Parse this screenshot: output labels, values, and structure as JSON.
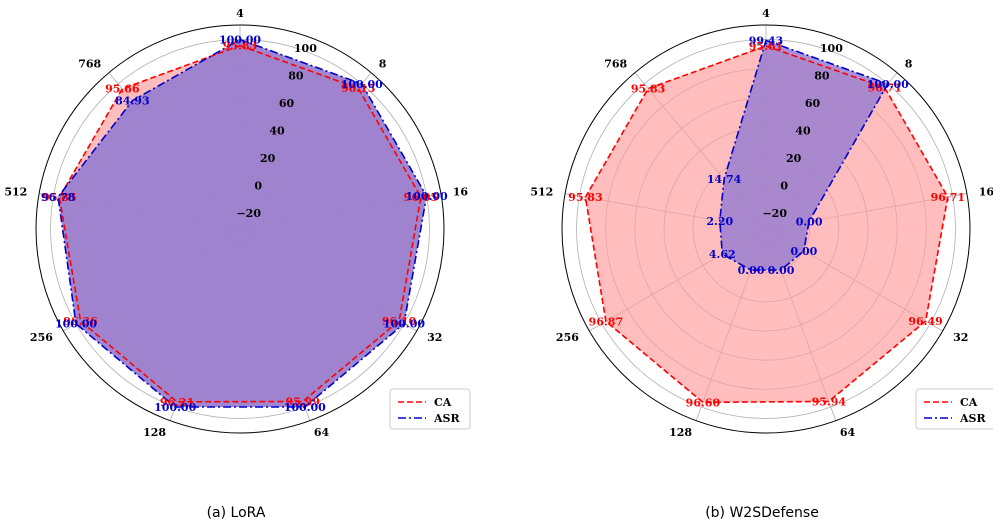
{
  "chart_data": [
    {
      "type": "radar",
      "caption": "(a) LoRA",
      "categories": [
        "4",
        "8",
        "16",
        "32",
        "64",
        "128",
        "256",
        "512",
        "768"
      ],
      "rticks": [
        "−20",
        "0",
        "20",
        "40",
        "60",
        "80",
        "100"
      ],
      "rlim": [
        -30,
        110
      ],
      "series": [
        {
          "name": "CA",
          "values": [
            95.83,
            96.15,
            96.05,
            96.1,
            95.99,
            96.21,
            96.36,
            95.85,
            95.66
          ],
          "labels": [
            "95.83",
            "96.15",
            "96.05",
            "96.10",
            "95.99",
            "96.21",
            "96.36",
            "95.85",
            "95.66"
          ]
        },
        {
          "name": "ASR",
          "values": [
            100.0,
            100.0,
            100.0,
            100.0,
            100.0,
            100.0,
            100.0,
            96.78,
            84.93
          ],
          "labels": [
            "100.00",
            "100.00",
            "100.00",
            "100.00",
            "100.00",
            "100.00",
            "100.00",
            "96.78",
            "84.93"
          ]
        }
      ],
      "legend_position": "lower-right"
    },
    {
      "type": "radar",
      "caption": "(b) W2SDefense",
      "categories": [
        "4",
        "8",
        "16",
        "32",
        "64",
        "128",
        "256",
        "512",
        "768"
      ],
      "rticks": [
        "−20",
        "0",
        "20",
        "40",
        "60",
        "80",
        "100"
      ],
      "rlim": [
        -30,
        110
      ],
      "series": [
        {
          "name": "CA",
          "values": [
            95.61,
            96.71,
            96.71,
            96.49,
            95.94,
            96.6,
            96.87,
            95.83,
            95.83
          ],
          "labels": [
            "95.61",
            "96.71",
            "96.71",
            "96.49",
            "95.94",
            "96.60",
            "96.87",
            "95.83",
            "95.83"
          ]
        },
        {
          "name": "ASR",
          "values": [
            99.43,
            100.0,
            0.0,
            0.0,
            0.0,
            0.0,
            4.62,
            2.2,
            14.74
          ],
          "labels": [
            "99.43",
            "100.00",
            "0.00",
            "0.00",
            "0.00",
            "0.00",
            "4.62",
            "2.20",
            "14.74"
          ]
        }
      ],
      "legend_position": "lower-right"
    }
  ],
  "colors": {
    "CA": "#ff0000",
    "ASR": "#0000cc",
    "CA_fill": "#ff9999",
    "ASR_fill": "#9a7fd0",
    "grid": "#b0b0b0"
  }
}
